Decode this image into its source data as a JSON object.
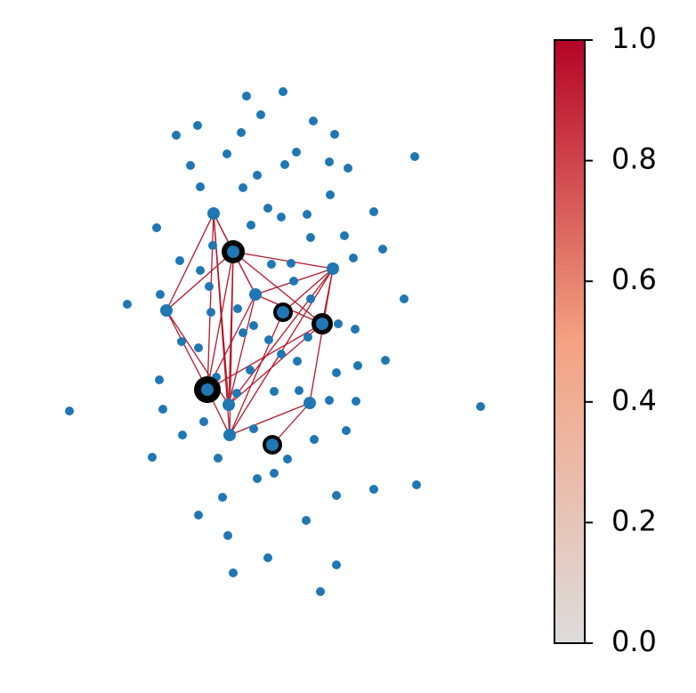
{
  "chart_data": {
    "type": "network",
    "node_color": "#1f77b4",
    "edge_color": "#b2182b",
    "highlight_color": "#000000",
    "colormap": [
      "#dddcdc",
      "#f4a283",
      "#b40426"
    ],
    "clim": [
      0,
      1
    ],
    "cticks": [
      {
        "value": 0,
        "label": "0.0"
      },
      {
        "value": 0.2,
        "label": "0.2"
      },
      {
        "value": 0.4,
        "label": "0.4"
      },
      {
        "value": 0.6,
        "label": "0.6"
      },
      {
        "value": 0.8,
        "label": "0.8"
      },
      {
        "value": 1,
        "label": "1.0"
      }
    ]
  }
}
